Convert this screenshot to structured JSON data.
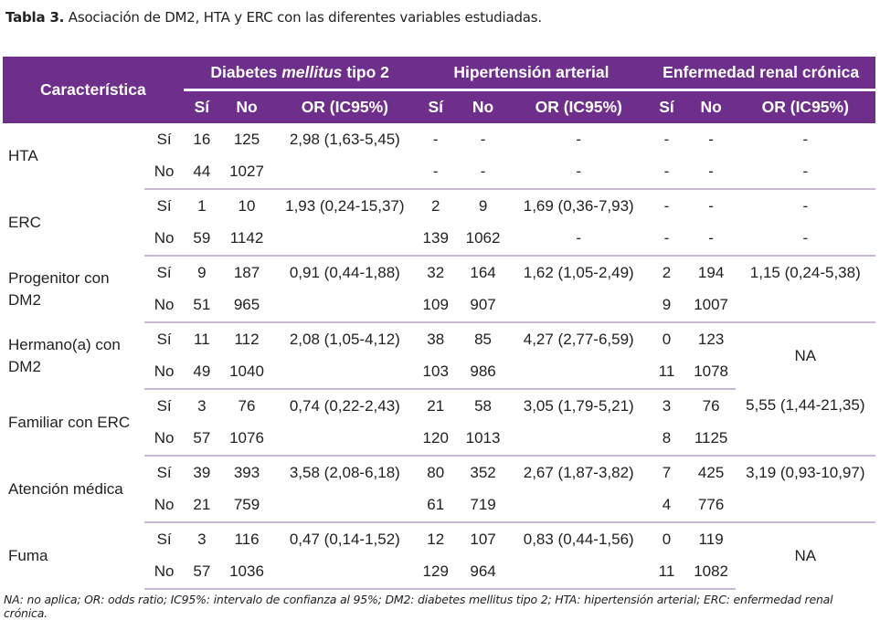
{
  "caption": {
    "label": "Tabla 3.",
    "text": "Asociación de DM2, HTA y ERC con las diferentes variables estudiadas."
  },
  "header": {
    "characteristic": "Característica",
    "groups": [
      {
        "pre": "Diabetes ",
        "em": "mellitus",
        "post": " tipo 2"
      },
      {
        "pre": "Hipertensión arterial",
        "em": "",
        "post": ""
      },
      {
        "pre": "Enfermedad renal crónica",
        "em": "",
        "post": ""
      }
    ],
    "sub": [
      "Sí",
      "No",
      "OR (IC95%)",
      "Sí",
      "No",
      "OR (IC95%)",
      "Sí",
      "No",
      "OR (IC95%)"
    ]
  },
  "rows": [
    {
      "char": "HTA",
      "sub": [
        {
          "lvl": "Sí",
          "v": [
            "16",
            "125",
            "2,98 (1,63-5,45)",
            "-",
            "-",
            "-",
            "-",
            "-",
            "-"
          ]
        },
        {
          "lvl": "No",
          "v": [
            "44",
            "1027",
            "",
            "-",
            "-",
            "-",
            "-",
            "-",
            "-"
          ]
        }
      ]
    },
    {
      "char": "ERC",
      "sub": [
        {
          "lvl": "Sí",
          "v": [
            "1",
            "10",
            "1,93 (0,24-15,37)",
            "2",
            "9",
            "1,69 (0,36-7,93)",
            "-",
            "-",
            "-"
          ]
        },
        {
          "lvl": "No",
          "v": [
            "59",
            "1142",
            "",
            "139",
            "1062",
            "-",
            "-",
            "-",
            "-"
          ]
        }
      ]
    },
    {
      "char": "Progenitor con DM2",
      "sub": [
        {
          "lvl": "Sí",
          "v": [
            "9",
            "187",
            "0,91 (0,44-1,88)",
            "32",
            "164",
            "1,62 (1,05-2,49)",
            "2",
            "194",
            "1,15 (0,24-5,38)"
          ]
        },
        {
          "lvl": "No",
          "v": [
            "51",
            "965",
            "",
            "109",
            "907",
            "",
            "9",
            "1007",
            ""
          ]
        }
      ]
    },
    {
      "char": "Hermano(a) con DM2",
      "merged_or": "NA",
      "sub": [
        {
          "lvl": "Sí",
          "v": [
            "11",
            "112",
            "2,08 (1,05-4,12)",
            "38",
            "85",
            "4,27 (2,77-6,59)",
            "0",
            "123"
          ]
        },
        {
          "lvl": "No",
          "v": [
            "49",
            "1040",
            "",
            "103",
            "986",
            "",
            "11",
            "1078"
          ]
        }
      ]
    },
    {
      "char": "Familiar con ERC",
      "sub": [
        {
          "lvl": "Sí",
          "v": [
            "3",
            "76",
            "0,74 (0,22-2,43)",
            "21",
            "58",
            "3,05 (1,79-5,21)",
            "3",
            "76",
            "5,55 (1,44-21,35)"
          ]
        },
        {
          "lvl": "No",
          "v": [
            "57",
            "1076",
            "",
            "120",
            "1013",
            "",
            "8",
            "1125",
            ""
          ]
        }
      ]
    },
    {
      "char": "Atención médica",
      "sub": [
        {
          "lvl": "Sí",
          "v": [
            "39",
            "393",
            "3,58 (2,08-6,18)",
            "80",
            "352",
            "2,67 (1,87-3,82)",
            "7",
            "425",
            "3,19 (0,93-10,97)"
          ]
        },
        {
          "lvl": "No",
          "v": [
            "21",
            "759",
            "",
            "61",
            "719",
            "",
            "4",
            "776",
            ""
          ]
        }
      ]
    },
    {
      "char": "Fuma",
      "merged_or": "NA",
      "sub": [
        {
          "lvl": "Sí",
          "v": [
            "3",
            "116",
            "0,47 (0,14-1,52)",
            "12",
            "107",
            "0,83 (0,44-1,56)",
            "0",
            "119"
          ]
        },
        {
          "lvl": "No",
          "v": [
            "57",
            "1036",
            "",
            "129",
            "964",
            "",
            "11",
            "1082"
          ]
        }
      ]
    }
  ],
  "footnote": "NA: no aplica; OR: odds ratio; IC95%: intervalo de confianza al 95%; DM2: diabetes mellitus tipo 2; HTA: hipertensión arterial; ERC: enfermedad renal crónica.",
  "colors": {
    "header_bg": "#6e2f8c",
    "header_text": "#ffffff",
    "separator": "#c9b7d6"
  }
}
